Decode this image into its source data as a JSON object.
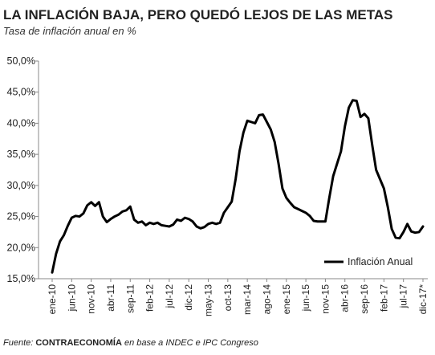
{
  "chart_data": {
    "type": "line",
    "title": "LA INFLACIÓN BAJA, PERO QUEDÓ LEJOS DE LAS METAS",
    "subtitle": "Tasa de inflación anual en %",
    "footer": {
      "prefix": "Fuente: ",
      "source": "CONTRAECONOMÍA",
      "suffix": " en base a INDEC e IPC Congreso"
    },
    "categories": [
      "ene-10",
      null,
      null,
      null,
      null,
      "jun-10",
      null,
      null,
      null,
      null,
      "nov-10",
      null,
      null,
      null,
      null,
      "abr-11",
      null,
      null,
      null,
      null,
      "sep-11",
      null,
      null,
      null,
      null,
      "feb-12",
      null,
      null,
      null,
      null,
      "jul-12",
      null,
      null,
      null,
      null,
      "dic-12",
      null,
      null,
      null,
      null,
      "may-13",
      null,
      null,
      null,
      null,
      "oct-13",
      null,
      null,
      null,
      null,
      "mar-14",
      null,
      null,
      null,
      null,
      "ago-14",
      null,
      null,
      null,
      null,
      "ene-15",
      null,
      null,
      null,
      null,
      "jun-15",
      null,
      null,
      null,
      null,
      "nov-15",
      null,
      null,
      null,
      null,
      "abr-16",
      null,
      null,
      null,
      null,
      "sep-16",
      null,
      null,
      null,
      null,
      "feb-17",
      null,
      null,
      null,
      null,
      "jul-17",
      null,
      null,
      null,
      null,
      "dic-17*"
    ],
    "series": [
      {
        "name": "Inflación Anual",
        "color": "#000000",
        "values": [
          16.0,
          19.0,
          21.0,
          22.0,
          23.5,
          24.8,
          25.1,
          25.0,
          25.5,
          26.8,
          27.3,
          26.7,
          27.3,
          25.0,
          24.1,
          24.6,
          25.0,
          25.3,
          25.8,
          26.0,
          26.6,
          24.5,
          24.0,
          24.2,
          23.6,
          24.0,
          23.8,
          24.0,
          23.6,
          23.5,
          23.4,
          23.7,
          24.5,
          24.3,
          24.8,
          24.6,
          24.2,
          23.4,
          23.1,
          23.3,
          23.8,
          24.0,
          23.8,
          24.0,
          25.6,
          26.5,
          27.4,
          31.0,
          35.5,
          38.5,
          40.4,
          40.2,
          40.0,
          41.3,
          41.4,
          40.2,
          39.0,
          37.0,
          33.5,
          29.5,
          28.0,
          27.2,
          26.5,
          26.2,
          25.9,
          25.6,
          25.1,
          24.3,
          24.2,
          24.2,
          24.2,
          28.0,
          31.5,
          33.5,
          35.5,
          39.5,
          42.5,
          43.7,
          43.6,
          41.0,
          41.5,
          40.8,
          36.5,
          32.5,
          31.0,
          29.5,
          26.5,
          23.0,
          21.6,
          21.5,
          22.5,
          23.8,
          22.6,
          22.4,
          22.5,
          23.4
        ]
      }
    ],
    "ylim": [
      15,
      50
    ],
    "yticks": [
      {
        "value": 15,
        "label": "15,0%"
      },
      {
        "value": 20,
        "label": "20,0%"
      },
      {
        "value": 25,
        "label": "25,0%"
      },
      {
        "value": 30,
        "label": "30,0%"
      },
      {
        "value": 35,
        "label": "35,0%"
      },
      {
        "value": 40,
        "label": "40,0%"
      },
      {
        "value": 45,
        "label": "45,0%"
      },
      {
        "value": 50,
        "label": "50,0%"
      }
    ],
    "grid": false,
    "legend": "bottom-right"
  }
}
